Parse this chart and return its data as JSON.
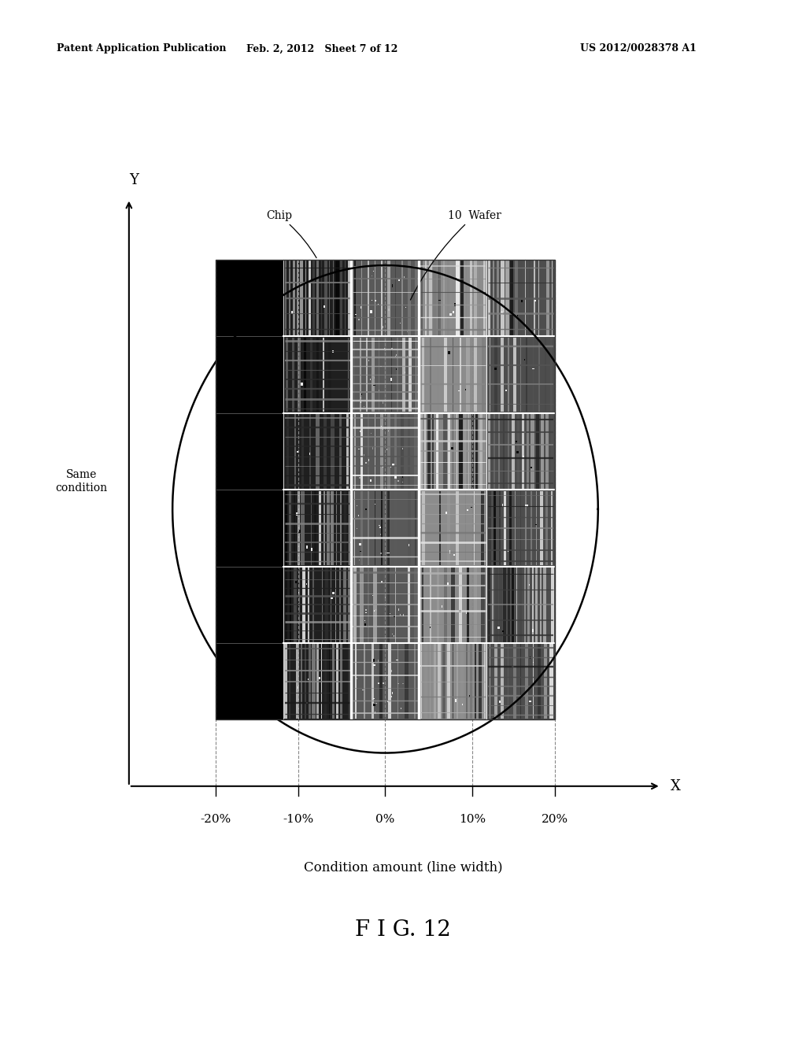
{
  "title_left": "Patent Application Publication",
  "title_center": "Feb. 2, 2012   Sheet 7 of 12",
  "title_right": "US 2012/0028378 A1",
  "fig_label": "F I G. 12",
  "xlabel": "Condition amount (line width)",
  "ylabel_top": "Y",
  "xlabel_right": "X",
  "ylabel_label": "Same\ncondition",
  "xtick_labels": [
    "-20%",
    "-10%",
    "0%",
    "10%",
    "20%"
  ],
  "chip_label": "Chip",
  "wafer_label": "10  Wafer",
  "background_color": "#ffffff"
}
